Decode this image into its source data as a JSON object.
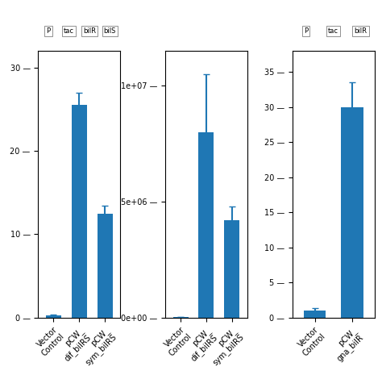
{
  "chart_data": [
    {
      "type": "bar",
      "categories": [
        "Vector\nControl",
        "pCW_\ndif_bilRS",
        "pCW_\nsym_bilRS"
      ],
      "values": [
        0.25,
        25.5,
        12.5
      ],
      "errors": [
        0.08,
        1.5,
        0.9
      ],
      "ylim": [
        0,
        32
      ],
      "yticks": [
        {
          "value": 0,
          "label": "0 —"
        },
        {
          "value": 10,
          "label": "10 —"
        },
        {
          "value": 20,
          "label": "20 —"
        },
        {
          "value": 30,
          "label": "30 —"
        }
      ],
      "annotations": [
        "P",
        "tac",
        "bilR",
        "bilS"
      ]
    },
    {
      "type": "bar",
      "categories": [
        "Vector\nControl",
        "pCW_\ndif_bilRS",
        "pCW_\nsym_bilRS"
      ],
      "values": [
        8000,
        8000000,
        4200000
      ],
      "errors": [
        1000,
        2500000,
        600000
      ],
      "ylim": [
        0,
        11500000.0
      ],
      "yticks": [
        {
          "value": 0,
          "label": "0e+00 —"
        },
        {
          "value": 5000000,
          "label": "5e+06 —"
        },
        {
          "value": 10000000,
          "label": "1e+07 —"
        }
      ]
    },
    {
      "type": "bar",
      "categories": [
        "Vector\nControl",
        "pCW_\ngna_bilR"
      ],
      "values": [
        1.0,
        30.0
      ],
      "errors": [
        0.3,
        3.5
      ],
      "ylim": [
        0,
        38
      ],
      "yticks": [
        {
          "value": 0,
          "label": "0 —"
        },
        {
          "value": 5,
          "label": "5 —"
        },
        {
          "value": 10,
          "label": "10 —"
        },
        {
          "value": 15,
          "label": "15 —"
        },
        {
          "value": 20,
          "label": "20 —"
        },
        {
          "value": 25,
          "label": "25 —"
        },
        {
          "value": 30,
          "label": "30 —"
        },
        {
          "value": 35,
          "label": "35 —"
        }
      ],
      "annotations": [
        "P",
        "tac",
        "bilR"
      ]
    }
  ]
}
